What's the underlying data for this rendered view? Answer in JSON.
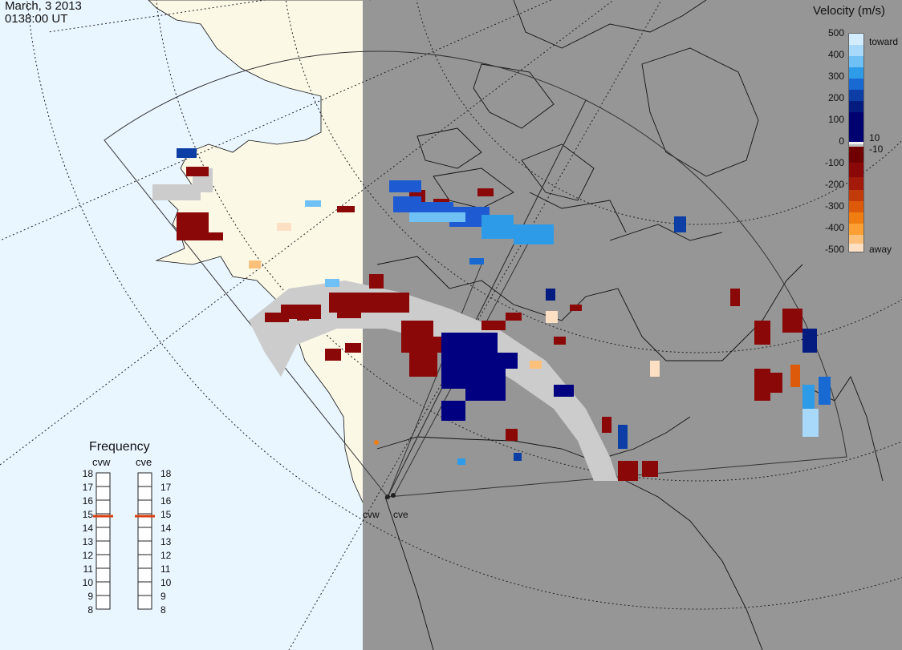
{
  "timestamp": {
    "date": "March, 3 2013",
    "time": "0138:00 UT"
  },
  "legend": {
    "title": "Velocity (m/s)",
    "ticks": [
      "500",
      "400",
      "300",
      "200",
      "100",
      "0",
      "-100",
      "-200",
      "-300",
      "-400",
      "-500"
    ],
    "near_zero_ticks": [
      "10",
      "-10"
    ],
    "toward_label": "toward",
    "away_label": "away",
    "colors": [
      "#d4ecff",
      "#a8d8fa",
      "#6ec0f5",
      "#2d9be8",
      "#1869d1",
      "#0c3ea5",
      "#041c80",
      "#000070",
      "#f0f0f0",
      "#c0c0c0",
      "#700000",
      "#8a0808",
      "#a31a0a",
      "#c23b0a",
      "#dd5a0a",
      "#f07d12",
      "#fca035",
      "#fdc07a",
      "#fde0c4"
    ]
  },
  "frequency": {
    "title": "Frequency",
    "radars": [
      "cvw",
      "cve"
    ],
    "scale": [
      "18",
      "17",
      "16",
      "15",
      "14",
      "13",
      "12",
      "11",
      "10",
      "9",
      "8"
    ],
    "selected_mhz": [
      15,
      15
    ]
  },
  "sites": [
    "cvw",
    "cve"
  ],
  "colors": {
    "ocean": "#e9f5ff",
    "land": "#fbf8e6",
    "night": "#969696",
    "ground_scatter": "#cccccc",
    "marker": "#d94010"
  }
}
